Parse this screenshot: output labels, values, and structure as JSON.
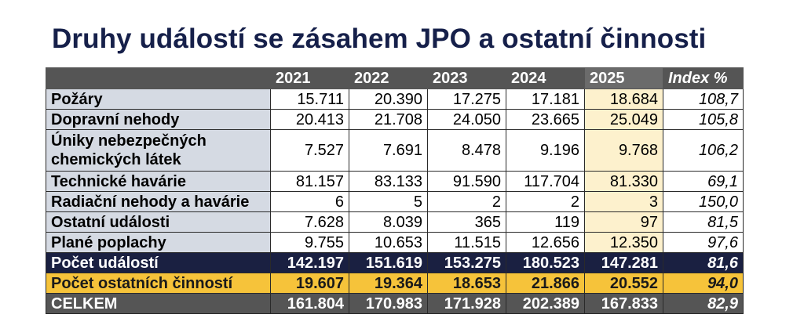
{
  "title": "Druhy událostí se zásahem JPO a ostatní činnosti",
  "table": {
    "headers": [
      "",
      "2021",
      "2022",
      "2023",
      "2024",
      "2025",
      "Index %"
    ],
    "rows": [
      {
        "label": "Požáry",
        "values": [
          "15.711",
          "20.390",
          "17.275",
          "17.181",
          "18.684"
        ],
        "index": "108,7"
      },
      {
        "label": "Dopravní nehody",
        "values": [
          "20.413",
          "21.708",
          "24.050",
          "23.665",
          "25.049"
        ],
        "index": "105,8"
      },
      {
        "label": "Úniky nebezpečných chemických látek",
        "values": [
          "7.527",
          "7.691",
          "8.478",
          "9.196",
          "9.768"
        ],
        "index": "106,2"
      },
      {
        "label": "Technické havárie",
        "values": [
          "81.157",
          "83.133",
          "91.590",
          "117.704",
          "81.330"
        ],
        "index": "69,1"
      },
      {
        "label": "Radiační nehody a havárie",
        "values": [
          "6",
          "5",
          "2",
          "2",
          "3"
        ],
        "index": "150,0"
      },
      {
        "label": "Ostatní události",
        "values": [
          "7.628",
          "8.039",
          "365",
          "119",
          "97"
        ],
        "index": "81,5"
      },
      {
        "label": "Plané poplachy",
        "values": [
          "9.755",
          "10.653",
          "11.515",
          "12.656",
          "12.350"
        ],
        "index": "97,6"
      }
    ],
    "summary": [
      {
        "label": "Počet událostí",
        "values": [
          "142.197",
          "151.619",
          "153.275",
          "180.523",
          "147.281"
        ],
        "index": "81,6"
      },
      {
        "label": "Počet ostatních činností",
        "values": [
          "19.607",
          "19.364",
          "18.653",
          "21.866",
          "20.552"
        ],
        "index": "94,0"
      },
      {
        "label": "CELKEM",
        "values": [
          "161.804",
          "170.983",
          "171.928",
          "202.389",
          "167.833"
        ],
        "index": "82,9"
      }
    ]
  },
  "colors": {
    "title": "#16204a",
    "header_bg": "#555555",
    "label_bg": "#d5dae3",
    "highlight_2025": "#fdf1cd",
    "events_row_bg": "#1a2041",
    "other_row_bg": "#f6c33a",
    "total_row_bg": "#555555"
  }
}
